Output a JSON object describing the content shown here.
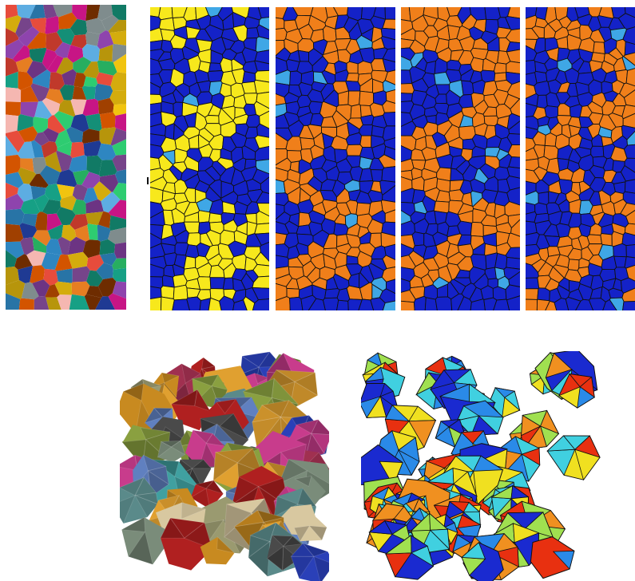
{
  "figure": {
    "panels": [
      {
        "id": "grain-map-2d",
        "kind": "grain-colors",
        "grains_x": 9,
        "grains_y": 22,
        "seed": 11
      },
      {
        "id": "field-map-1",
        "kind": "field-map",
        "highlight": "#f7e81c",
        "base": "#1422c8",
        "band_angle": 52,
        "seed": 21
      },
      {
        "id": "field-map-2",
        "kind": "field-map",
        "highlight": "#f07f1a",
        "base": "#1422c8",
        "band_angle": 58,
        "seed": 34
      },
      {
        "id": "field-map-3",
        "kind": "field-map",
        "highlight": "#f07f1a",
        "base": "#1422c8",
        "band_angle": 60,
        "seed": 47
      },
      {
        "id": "field-map-4",
        "kind": "field-map",
        "highlight": "#f07f1a",
        "base": "#1422c8",
        "band_angle": 62,
        "seed": 58
      },
      {
        "id": "grain-aggregate-3d",
        "kind": "grain-3d",
        "seed": 73
      },
      {
        "id": "field-aggregate-3d",
        "kind": "field-3d",
        "seed": 91
      }
    ],
    "colors": {
      "grain_palette": [
        "#c0392b",
        "#2e86c1",
        "#27ae60",
        "#f1c40f",
        "#8e44ad",
        "#e67e22",
        "#16a085",
        "#d35400",
        "#7f8c8d",
        "#c71585",
        "#2ecc71",
        "#1f3a93",
        "#b7950b",
        "#6c3483",
        "#e74c3c",
        "#5dade2",
        "#a04000",
        "#148f77",
        "#f5b7b1",
        "#6e2c00",
        "#d4ac0d",
        "#2874a6",
        "#76448a",
        "#117a65"
      ],
      "grain3d_palette": [
        "#7a8c7a",
        "#a03050",
        "#2a40b8",
        "#c88a20",
        "#8aa040",
        "#5a8a8a",
        "#d8c8a0",
        "#c83c8c",
        "#4a4a4a",
        "#b02020",
        "#e0a030",
        "#6080c0",
        "#9a9a70",
        "#40a0a0"
      ],
      "field_palette": [
        "#1a2ad0",
        "#2a8ae8",
        "#40d0e0",
        "#a0e050",
        "#f0e020",
        "#f09020",
        "#e83010"
      ],
      "edge": "#000000"
    }
  }
}
